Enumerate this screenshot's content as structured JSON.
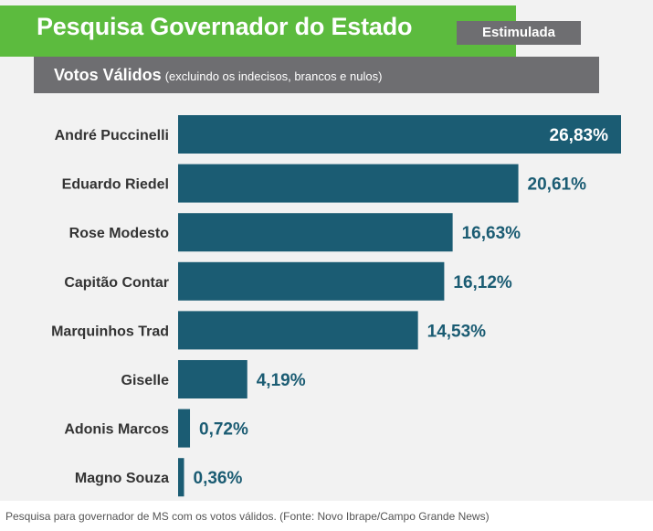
{
  "header": {
    "title": "Pesquisa Governador do Estado",
    "badge": "Estimulada",
    "subtitle": "Votos Válidos",
    "subtitle_note": "(excluindo os indecisos, brancos e nulos)"
  },
  "caption": "Pesquisa para governador de MS com os votos válidos. (Fonte: Novo Ibrape/Campo Grande News)",
  "colors": {
    "bar": "#1b5c73",
    "value_text": "#1b5c73",
    "label_text": "#333333",
    "title_bar": "#5cbb3e",
    "header_gray": "#6e6e71"
  },
  "chart_data": {
    "type": "bar",
    "orientation": "horizontal",
    "title": "Pesquisa Governador do Estado",
    "subtitle": "Votos Válidos (excluindo os indecisos, brancos e nulos)",
    "xlabel": "",
    "ylabel": "",
    "xlim": [
      0,
      26.83
    ],
    "grid": false,
    "legend": "none",
    "categories": [
      "André Puccinelli",
      "Eduardo Riedel",
      "Rose Modesto",
      "Capitão Contar",
      "Marquinhos Trad",
      "Giselle",
      "Adonis Marcos",
      "Magno Souza"
    ],
    "values": [
      26.83,
      20.61,
      16.63,
      16.12,
      14.53,
      4.19,
      0.72,
      0.36
    ],
    "value_labels": [
      "26,83%",
      "20,61%",
      "16,63%",
      "16,12%",
      "14,53%",
      "4,19%",
      "0,72%",
      "0,36%"
    ]
  }
}
